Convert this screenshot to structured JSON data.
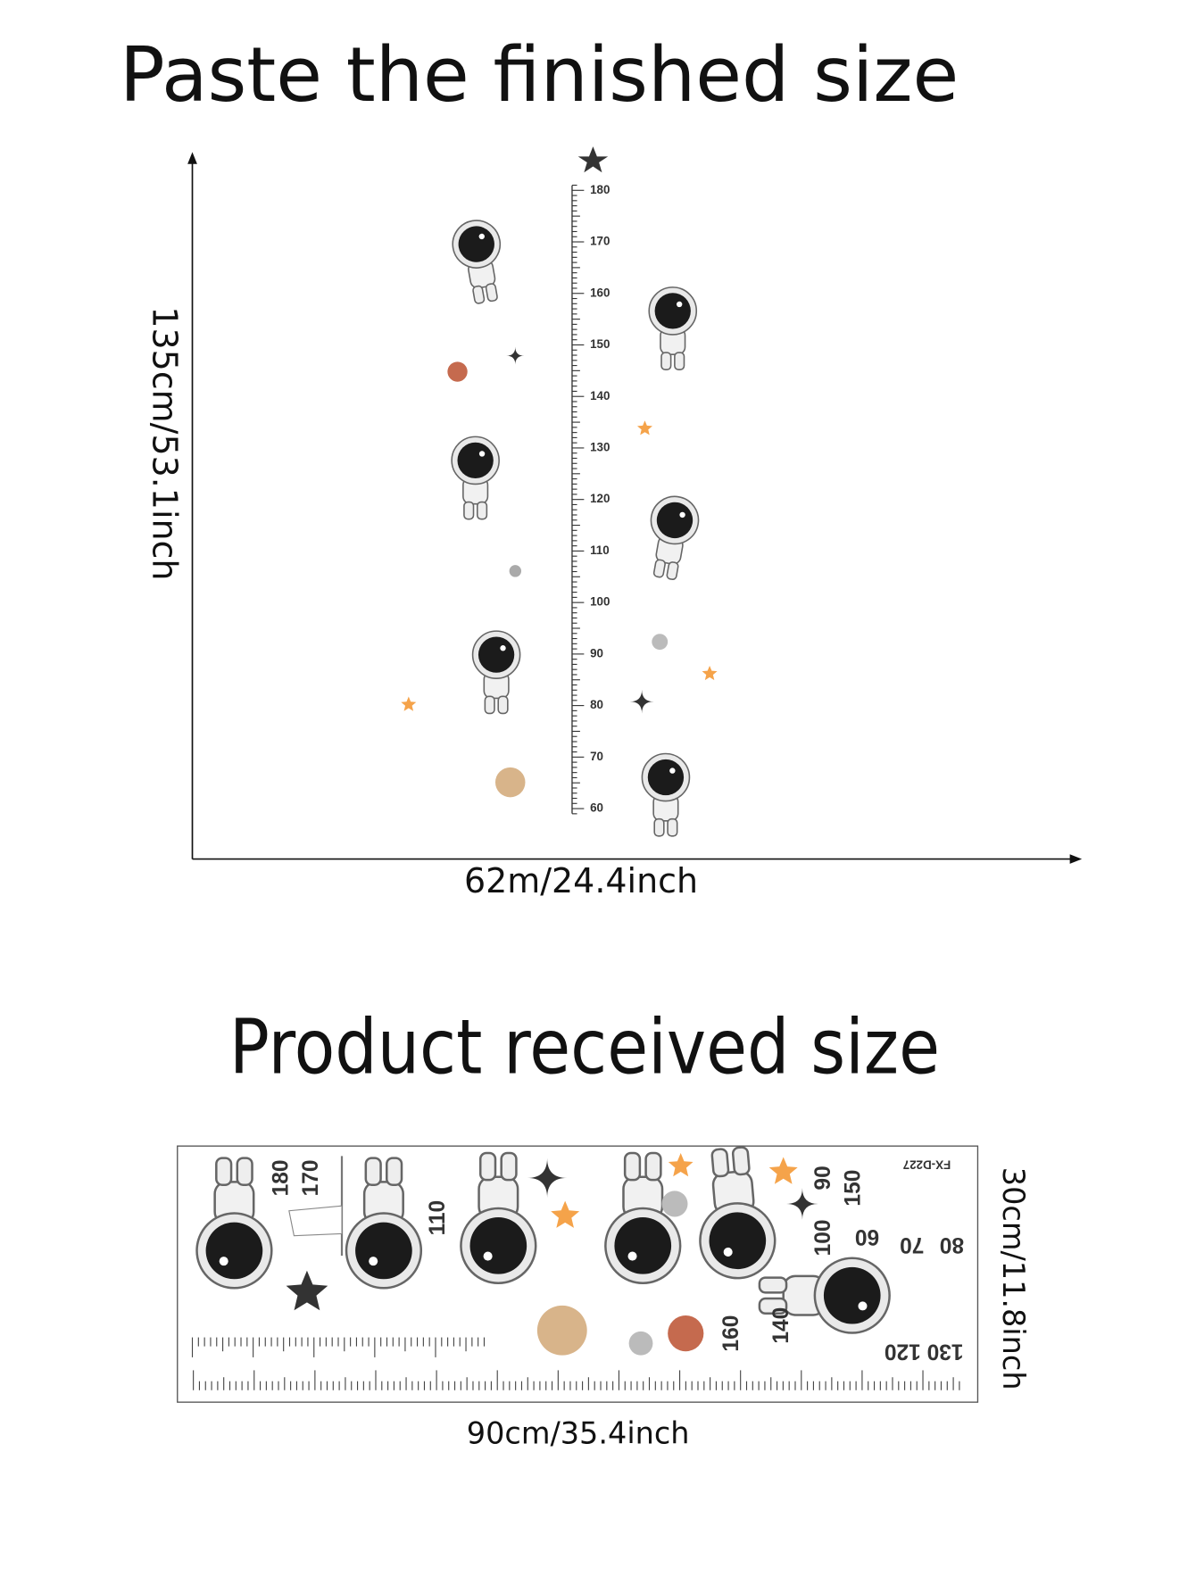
{
  "header": {
    "title": "Paste the finished size"
  },
  "finished": {
    "height_label": "135cm/53.1inch",
    "width_label": "62m/24.4inch",
    "ruler_labels": [
      "180",
      "170",
      "160",
      "150",
      "140",
      "130",
      "120",
      "110",
      "100",
      "90",
      "80",
      "70",
      "60"
    ]
  },
  "received": {
    "title": "Product received size",
    "height_label": "30cm/11.8inch",
    "width_label": "90cm/35.4inch",
    "sheet_labels": [
      "180",
      "170",
      "110",
      "90",
      "150",
      "100",
      "60",
      "70",
      "80",
      "160",
      "140",
      "130 120",
      "FX-D227"
    ]
  }
}
